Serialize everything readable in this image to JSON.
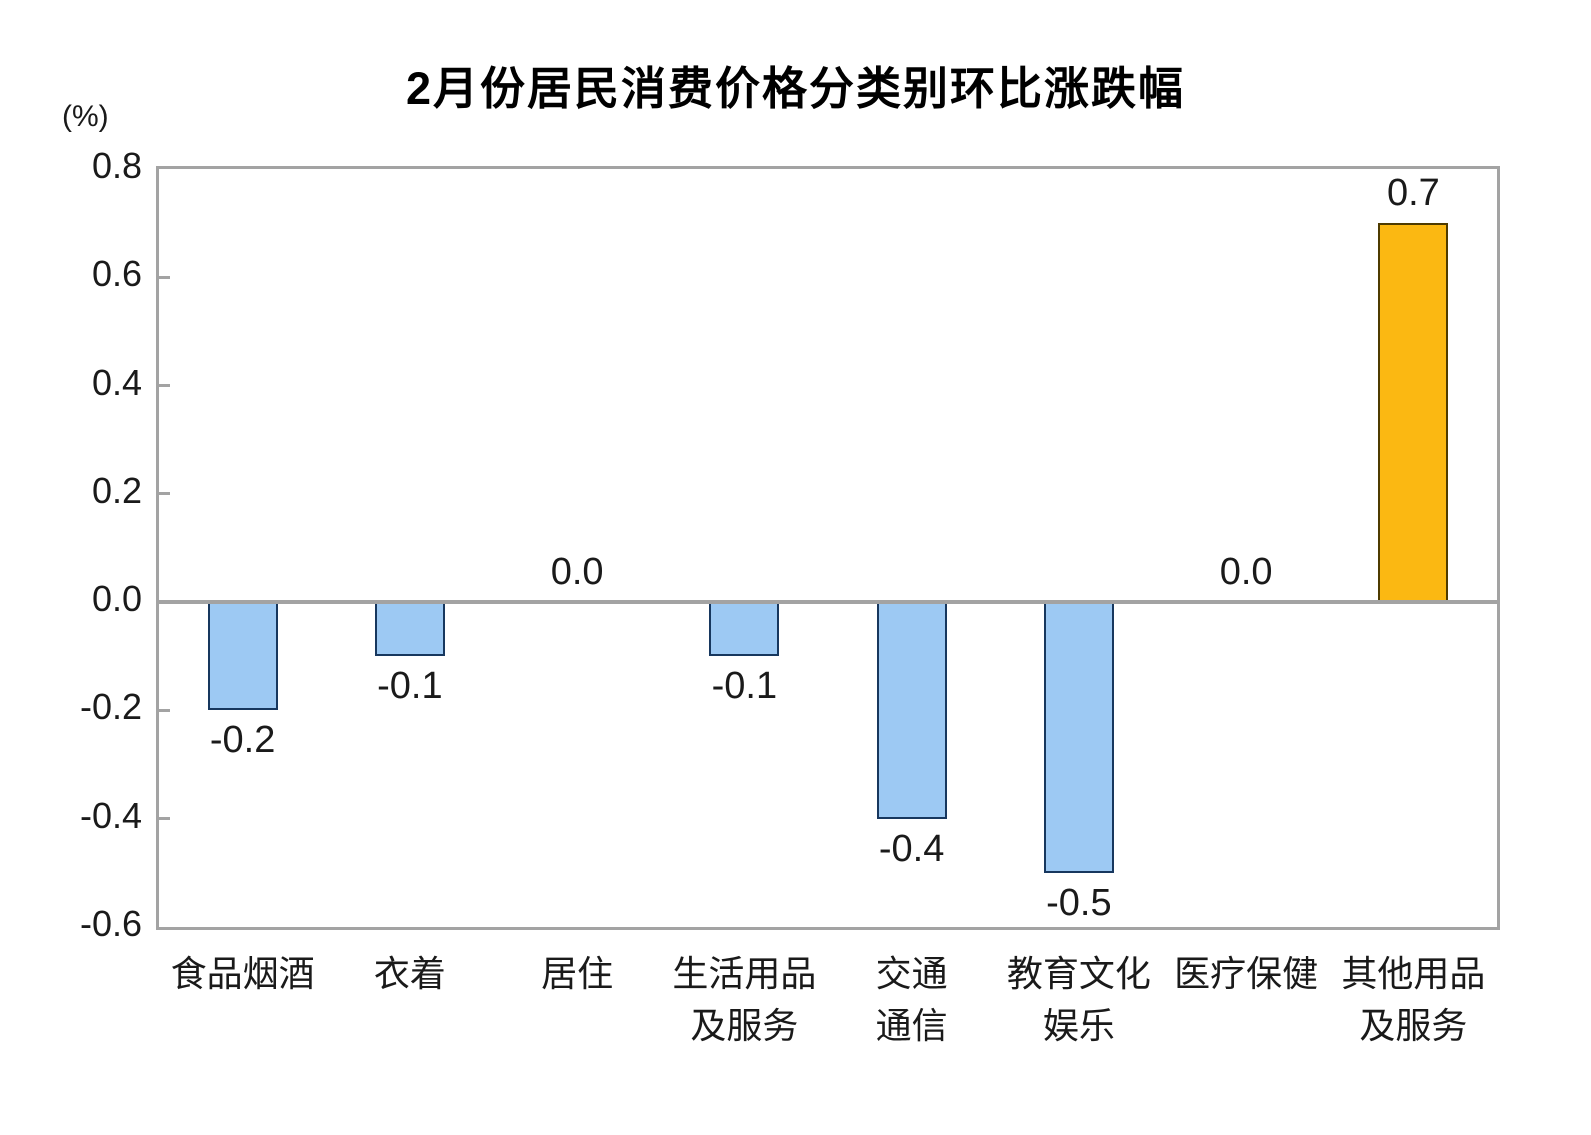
{
  "chart_data": {
    "type": "bar",
    "title": "2月份居民消费价格分类别环比涨跌幅",
    "unit_label": "(%)",
    "categories": [
      "食品烟酒",
      "衣着",
      "居住",
      "生活用品及服务",
      "交通通信",
      "教育文化娱乐",
      "医疗保健",
      "其他用品及服务"
    ],
    "x_tick_lines": [
      [
        "食品烟酒"
      ],
      [
        "衣着"
      ],
      [
        "居住"
      ],
      [
        "生活用品",
        "及服务"
      ],
      [
        "交通",
        "通信"
      ],
      [
        "教育文化",
        "娱乐"
      ],
      [
        "医疗保健"
      ],
      [
        "其他用品",
        "及服务"
      ]
    ],
    "values": [
      -0.2,
      -0.1,
      0.0,
      -0.1,
      -0.4,
      -0.5,
      0.0,
      0.7
    ],
    "data_labels": [
      "-0.2",
      "-0.1",
      "0.0",
      "-0.1",
      "-0.4",
      "-0.5",
      "0.0",
      "0.7"
    ],
    "yticks": [
      0.8,
      0.6,
      0.4,
      0.2,
      0.0,
      -0.2,
      -0.4,
      -0.6
    ],
    "ytick_labels": [
      "0.8",
      "0.6",
      "0.4",
      "0.2",
      "0.0",
      "-0.2",
      "-0.4",
      "-0.6"
    ],
    "ylim": [
      -0.6,
      0.8
    ],
    "xlabel": "",
    "ylabel": "",
    "grid": false,
    "legend_position": "none",
    "highlight_index": 7,
    "colors": {
      "bar_fill": "#9DC9F3",
      "bar_border": "#17375E",
      "highlight_fill": "#FBB812",
      "highlight_border": "#4E3B00",
      "axis_line": "#A3A3A3",
      "text": "#1A1A1A"
    }
  }
}
